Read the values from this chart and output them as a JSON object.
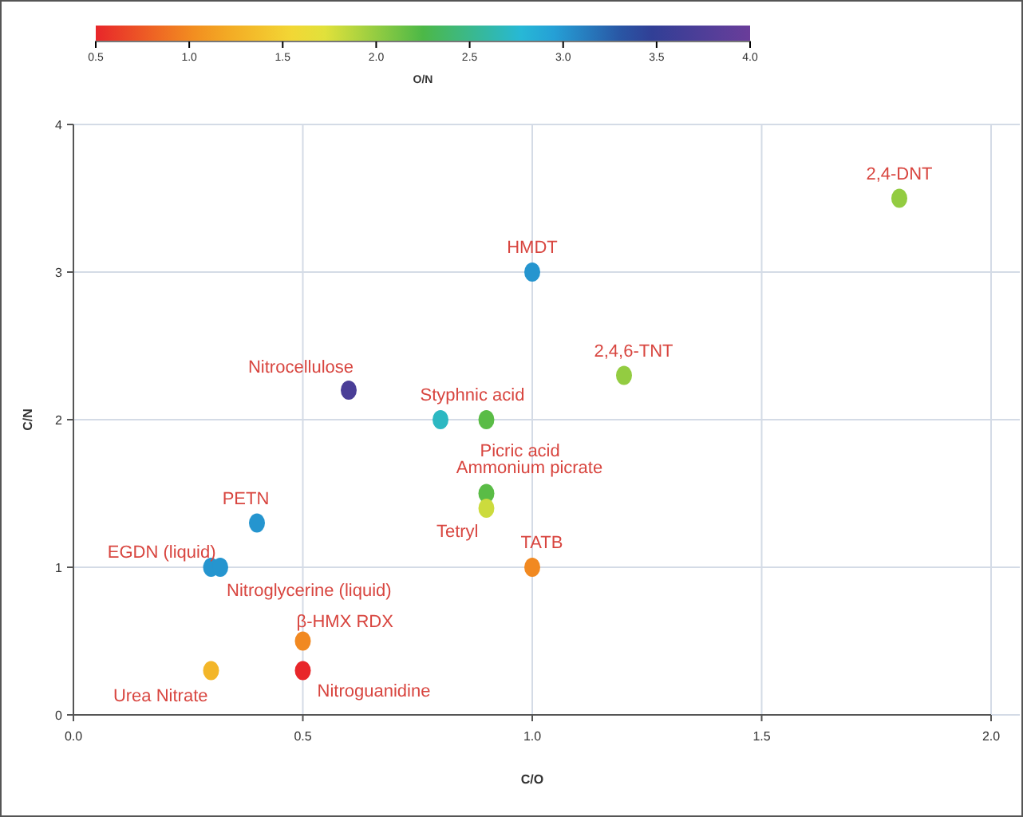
{
  "chart_data": {
    "type": "scatter",
    "xlabel": "C/O",
    "ylabel": "C/N",
    "clabel": "O/N",
    "xlim": [
      0,
      2
    ],
    "xticks": [
      {
        "value": 0,
        "label": "0.0"
      },
      0.5,
      {
        "value": 1,
        "label": "1.0"
      },
      1.5,
      {
        "value": 2,
        "label": "2.0"
      }
    ],
    "ylim": [
      0,
      4
    ],
    "yticks": [
      0,
      1,
      2,
      3,
      4
    ],
    "clim": [
      0.5,
      4
    ],
    "cticks": [
      0.5,
      {
        "value": 1,
        "label": "1.0"
      },
      1.5,
      {
        "value": 2,
        "label": "2.0"
      },
      2.5,
      {
        "value": 3,
        "label": "3.0"
      },
      3.5,
      {
        "value": 4,
        "label": "4.0"
      }
    ],
    "grid": true,
    "marker": "circle",
    "x": [
      1.8,
      1.0,
      1.2,
      0.6,
      0.8,
      0.9,
      0.9,
      0.9,
      0.4,
      0.3,
      0.32,
      1.0,
      0.5,
      0.5,
      0.3
    ],
    "values": [
      3.5,
      3.0,
      2.3,
      2.2,
      2.0,
      2.0,
      1.5,
      1.4,
      1.3,
      1.0,
      1.0,
      1.0,
      0.5,
      0.3,
      0.3
    ],
    "cvalues": [
      2.0,
      3.0,
      2.0,
      3.7,
      2.7,
      2.2,
      2.2,
      1.8,
      3.0,
      3.0,
      3.0,
      1.0,
      1.0,
      0.5,
      1.3
    ],
    "annotations": [
      {
        "text": "2,4-DNT",
        "x": 1.8,
        "y": 3.5
      },
      {
        "text": "HMDT",
        "x": 1.0,
        "y": 3.0
      },
      {
        "text": "2,4,6-TNT",
        "x": 1.2,
        "y": 2.3
      },
      {
        "text": "Nitrocellulose",
        "x": 0.6,
        "y": 2.2
      },
      {
        "text": "Styphnic acid",
        "x": 0.8,
        "y": 2.0
      },
      {
        "text": "Picric acid",
        "x": 0.9,
        "y": 2.0
      },
      {
        "text": "Ammonium picrate",
        "x": 0.9,
        "y": 1.5
      },
      {
        "text": "Tetryl",
        "x": 0.9,
        "y": 1.4
      },
      {
        "text": "PETN",
        "x": 0.4,
        "y": 1.3
      },
      {
        "text": "EGDN (liquid)",
        "x": 0.3,
        "y": 1.0
      },
      {
        "text": "Nitroglycerine (liquid)",
        "x": 0.32,
        "y": 1.0
      },
      {
        "text": "TATB",
        "x": 1.0,
        "y": 1.0
      },
      {
        "text": "β-HMX RDX",
        "x": 0.5,
        "y": 0.5
      },
      {
        "text": "Nitroguanidine",
        "x": 0.5,
        "y": 0.3
      },
      {
        "text": "Urea Nitrate",
        "x": 0.3,
        "y": 0.3
      }
    ]
  }
}
